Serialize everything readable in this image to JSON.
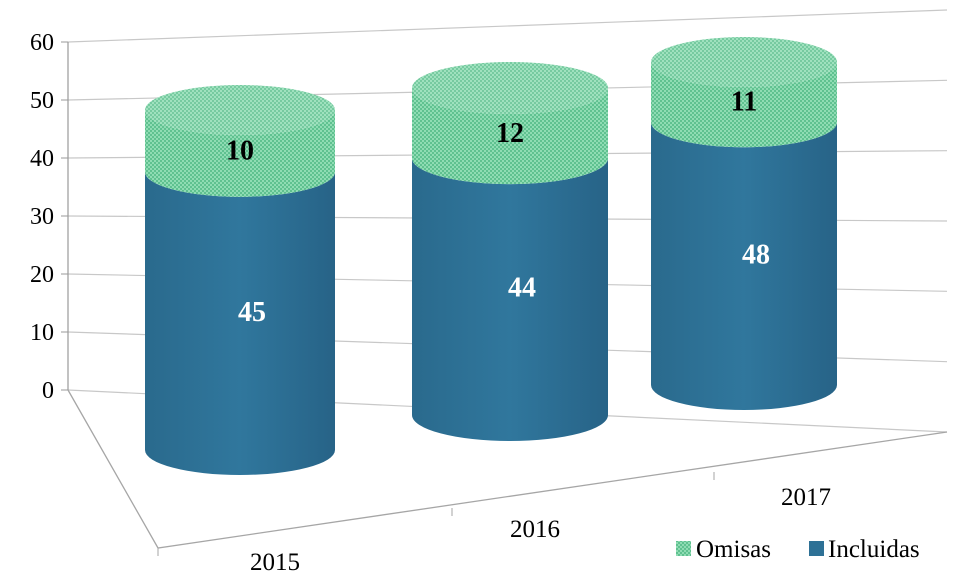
{
  "chart_data": {
    "type": "bar",
    "style": "3d-stacked-cylinder",
    "categories": [
      "2015",
      "2016",
      "2017"
    ],
    "series": [
      {
        "name": "Incluidas",
        "values": [
          45,
          44,
          48
        ],
        "color": "#2E7196"
      },
      {
        "name": "Omisas",
        "values": [
          10,
          12,
          11
        ],
        "color": "#7FD3A6",
        "pattern": "checker"
      }
    ],
    "y_ticks": [
      "0",
      "10",
      "20",
      "30",
      "40",
      "50",
      "60"
    ],
    "ylim": [
      0,
      60
    ],
    "grid": true,
    "legend_position": "bottom-right",
    "data_label_colors": {
      "Incluidas": "#ffffff",
      "Omisas": "#000000"
    }
  }
}
